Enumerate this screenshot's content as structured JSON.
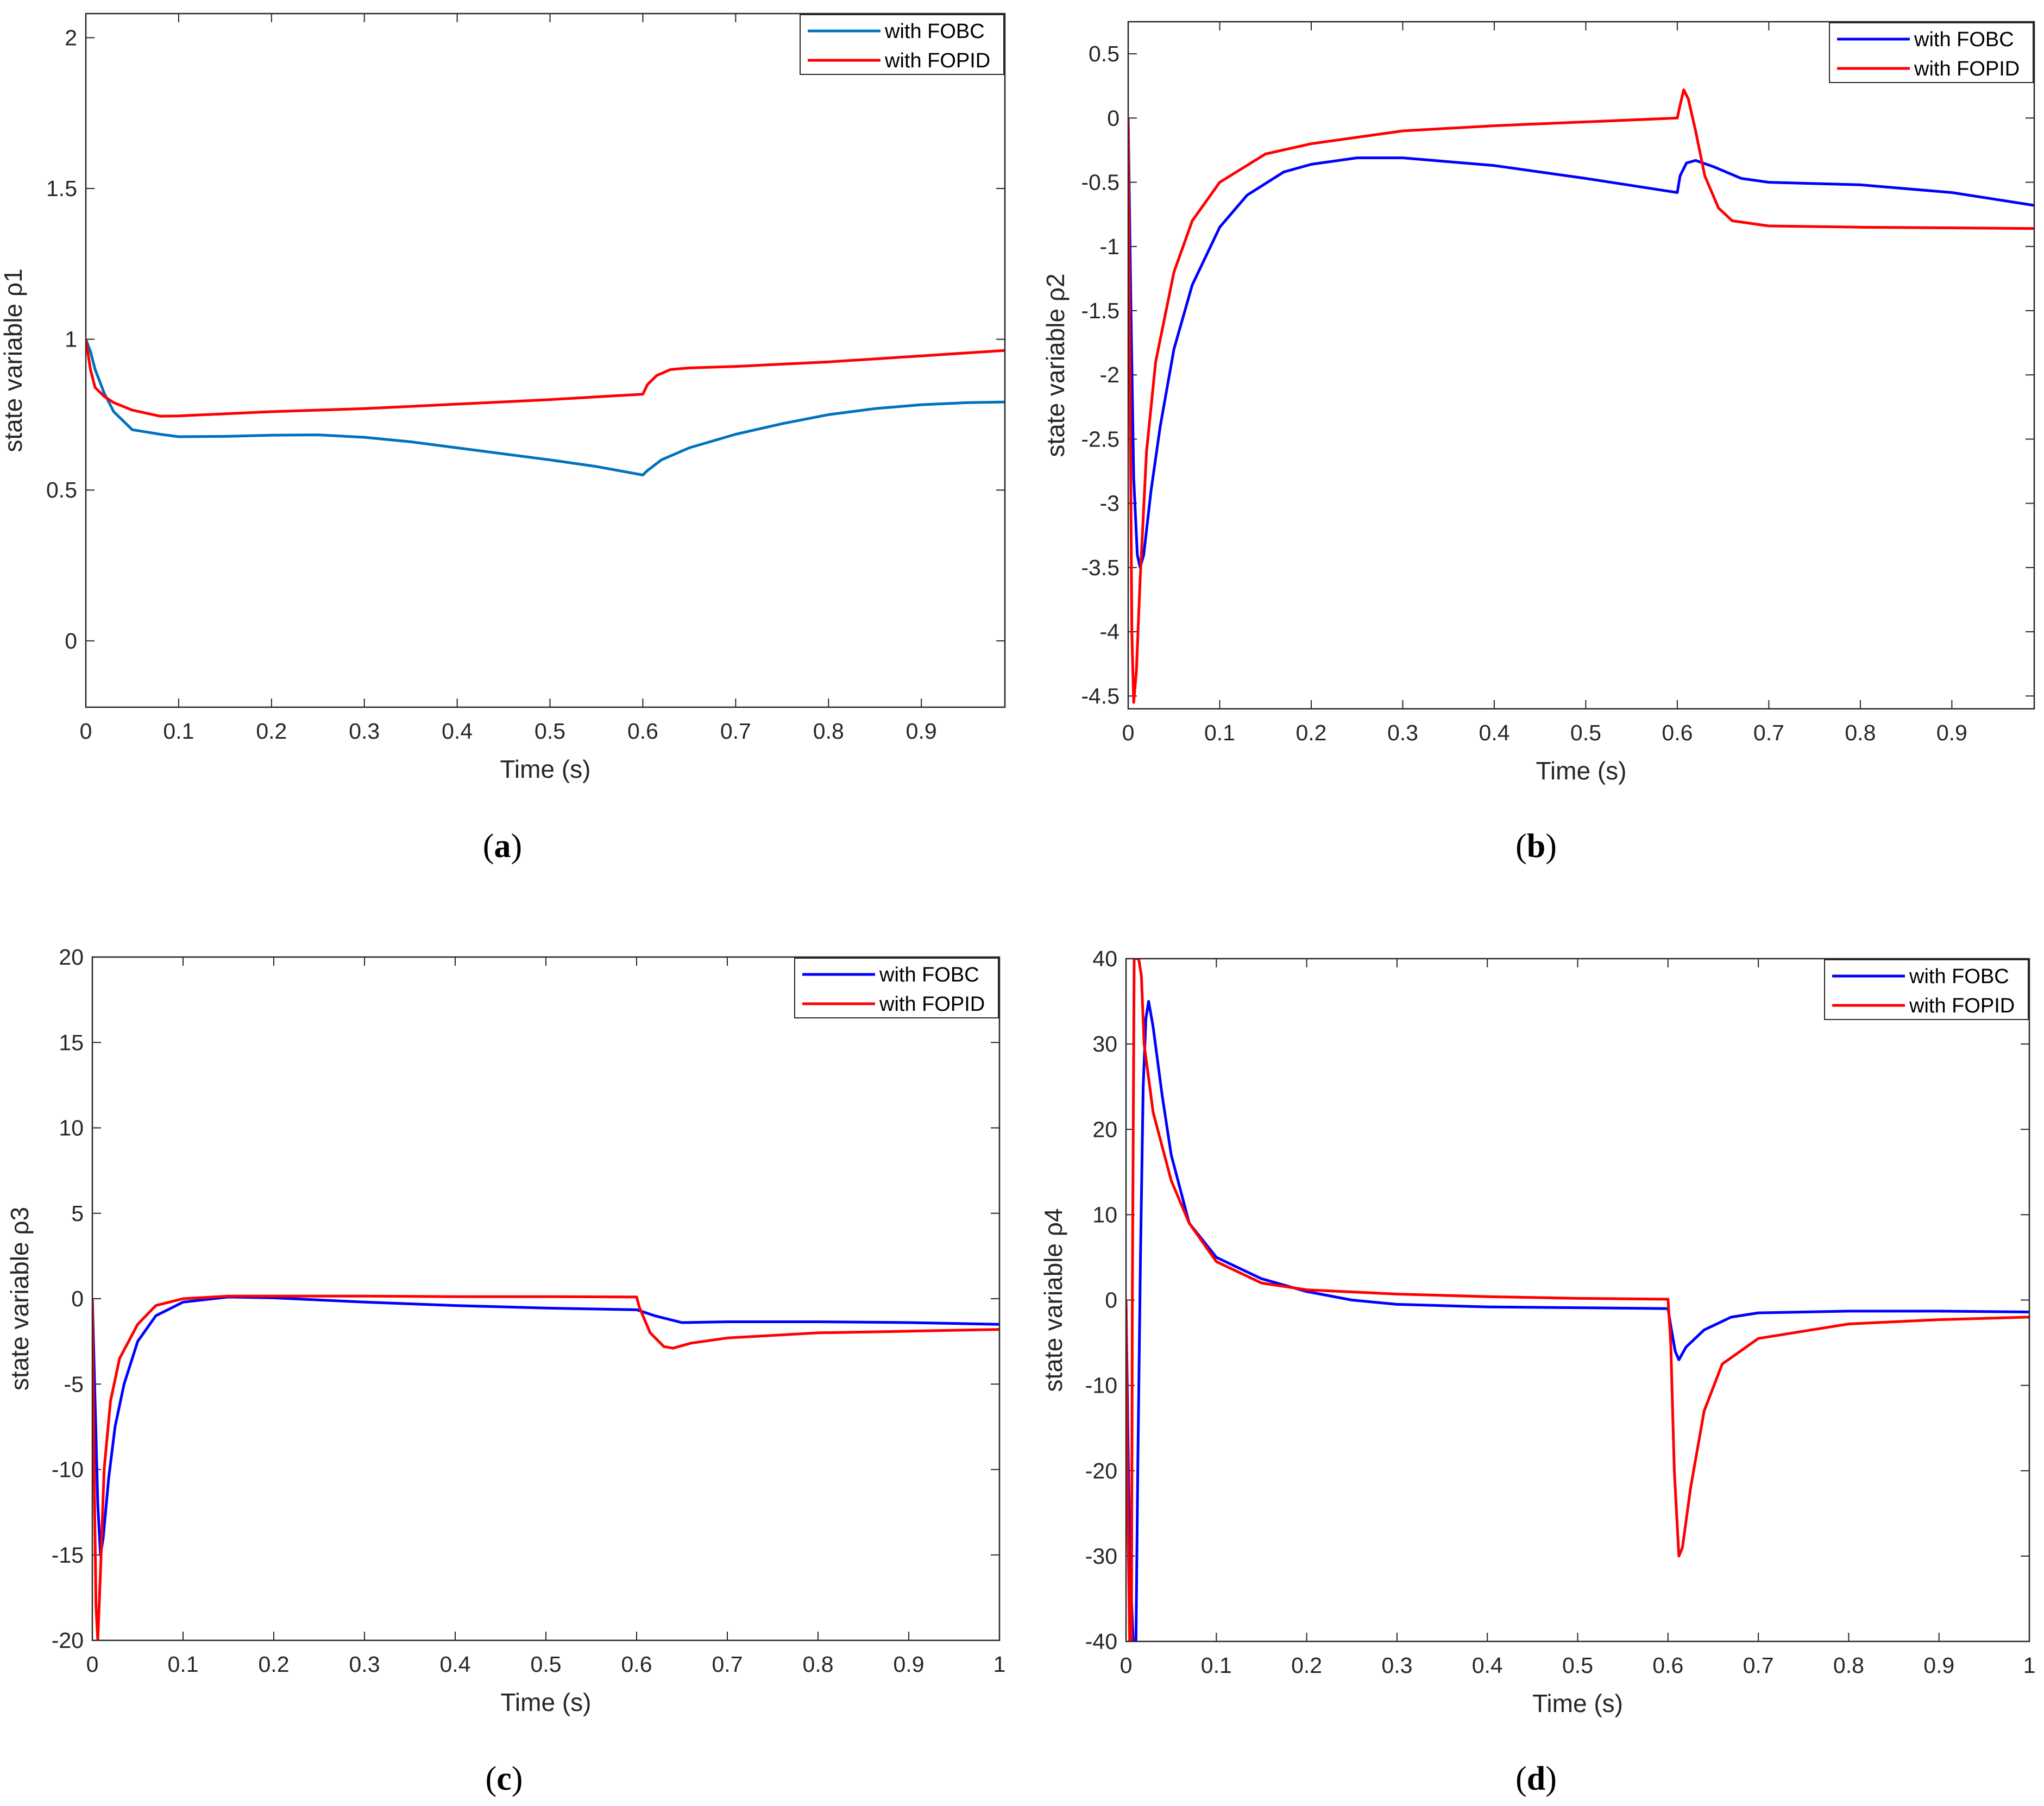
{
  "chart_data": [
    {
      "type": "line",
      "caption_letter": "a",
      "xlabel": "Time (s)",
      "ylabel": "state variable ρ1",
      "xlim": [
        0,
        0.99
      ],
      "ylim": [
        -0.22,
        2.08
      ],
      "xticks": [
        0,
        0.1,
        0.2,
        0.3,
        0.4,
        0.5,
        0.6,
        0.7,
        0.8,
        0.9
      ],
      "xtick_labels": [
        "0",
        "0.1",
        "0.2",
        "0.3",
        "0.4",
        "0.5",
        "0.6",
        "0.7",
        "0.8",
        "0.9"
      ],
      "yticks": [
        0,
        0.5,
        1,
        1.5,
        2
      ],
      "ytick_labels": [
        "0",
        "0.5",
        "1",
        "1.5",
        "2"
      ],
      "legend_position": "top-right",
      "series": [
        {
          "name": "with FOBC",
          "color": "#0072BD",
          "points": [
            [
              0,
              1
            ],
            [
              0.005,
              0.96
            ],
            [
              0.01,
              0.9
            ],
            [
              0.02,
              0.82
            ],
            [
              0.03,
              0.76
            ],
            [
              0.05,
              0.7
            ],
            [
              0.08,
              0.685
            ],
            [
              0.1,
              0.677
            ],
            [
              0.15,
              0.678
            ],
            [
              0.2,
              0.682
            ],
            [
              0.25,
              0.683
            ],
            [
              0.3,
              0.675
            ],
            [
              0.35,
              0.66
            ],
            [
              0.4,
              0.64
            ],
            [
              0.45,
              0.62
            ],
            [
              0.5,
              0.6
            ],
            [
              0.55,
              0.578
            ],
            [
              0.6,
              0.55
            ],
            [
              0.605,
              0.565
            ],
            [
              0.62,
              0.6
            ],
            [
              0.65,
              0.64
            ],
            [
              0.7,
              0.685
            ],
            [
              0.75,
              0.72
            ],
            [
              0.8,
              0.75
            ],
            [
              0.85,
              0.77
            ],
            [
              0.9,
              0.783
            ],
            [
              0.95,
              0.79
            ],
            [
              0.99,
              0.792
            ]
          ]
        },
        {
          "name": "with FOPID",
          "color": "#FF0000",
          "points": [
            [
              0,
              1
            ],
            [
              0.005,
              0.9
            ],
            [
              0.01,
              0.84
            ],
            [
              0.02,
              0.81
            ],
            [
              0.03,
              0.79
            ],
            [
              0.05,
              0.765
            ],
            [
              0.08,
              0.745
            ],
            [
              0.1,
              0.746
            ],
            [
              0.2,
              0.76
            ],
            [
              0.3,
              0.77
            ],
            [
              0.4,
              0.785
            ],
            [
              0.5,
              0.8
            ],
            [
              0.6,
              0.818
            ],
            [
              0.605,
              0.85
            ],
            [
              0.615,
              0.88
            ],
            [
              0.63,
              0.9
            ],
            [
              0.65,
              0.905
            ],
            [
              0.7,
              0.91
            ],
            [
              0.8,
              0.925
            ],
            [
              0.9,
              0.945
            ],
            [
              0.99,
              0.963
            ]
          ]
        }
      ]
    },
    {
      "type": "line",
      "caption_letter": "b",
      "xlabel": "Time (s)",
      "ylabel": "state variable ρ2",
      "xlim": [
        0,
        0.99
      ],
      "ylim": [
        -4.6,
        0.75
      ],
      "xticks": [
        0,
        0.1,
        0.2,
        0.3,
        0.4,
        0.5,
        0.6,
        0.7,
        0.8,
        0.9
      ],
      "xtick_labels": [
        "0",
        "0.1",
        "0.2",
        "0.3",
        "0.4",
        "0.5",
        "0.6",
        "0.7",
        "0.8",
        "0.9"
      ],
      "yticks": [
        -4.5,
        -4,
        -3.5,
        -3,
        -2.5,
        -2,
        -1.5,
        -1,
        -0.5,
        0,
        0.5
      ],
      "ytick_labels": [
        "-4.5",
        "-4",
        "-3.5",
        "-3",
        "-2.5",
        "-2",
        "-1.5",
        "-1",
        "-0.5",
        "0",
        "0.5"
      ],
      "legend_position": "top-right",
      "series": [
        {
          "name": "with FOBC",
          "color": "#0000FF",
          "points": [
            [
              0,
              0
            ],
            [
              0.003,
              -1.5
            ],
            [
              0.006,
              -2.8
            ],
            [
              0.01,
              -3.4
            ],
            [
              0.013,
              -3.5
            ],
            [
              0.017,
              -3.4
            ],
            [
              0.025,
              -2.9
            ],
            [
              0.035,
              -2.4
            ],
            [
              0.05,
              -1.8
            ],
            [
              0.07,
              -1.3
            ],
            [
              0.1,
              -0.85
            ],
            [
              0.13,
              -0.6
            ],
            [
              0.17,
              -0.42
            ],
            [
              0.2,
              -0.36
            ],
            [
              0.25,
              -0.31
            ],
            [
              0.3,
              -0.31
            ],
            [
              0.4,
              -0.37
            ],
            [
              0.5,
              -0.47
            ],
            [
              0.6,
              -0.58
            ],
            [
              0.603,
              -0.45
            ],
            [
              0.61,
              -0.35
            ],
            [
              0.62,
              -0.33
            ],
            [
              0.64,
              -0.38
            ],
            [
              0.67,
              -0.47
            ],
            [
              0.7,
              -0.5
            ],
            [
              0.8,
              -0.52
            ],
            [
              0.9,
              -0.58
            ],
            [
              0.99,
              -0.68
            ]
          ]
        },
        {
          "name": "with FOPID",
          "color": "#FF0000",
          "points": [
            [
              0,
              0
            ],
            [
              0.002,
              -2
            ],
            [
              0.004,
              -4
            ],
            [
              0.006,
              -4.55
            ],
            [
              0.009,
              -4.3
            ],
            [
              0.013,
              -3.6
            ],
            [
              0.02,
              -2.6
            ],
            [
              0.03,
              -1.9
            ],
            [
              0.05,
              -1.2
            ],
            [
              0.07,
              -0.8
            ],
            [
              0.1,
              -0.5
            ],
            [
              0.15,
              -0.28
            ],
            [
              0.2,
              -0.2
            ],
            [
              0.3,
              -0.1
            ],
            [
              0.4,
              -0.06
            ],
            [
              0.5,
              -0.03
            ],
            [
              0.6,
              0
            ],
            [
              0.603,
              0.1
            ],
            [
              0.607,
              0.22
            ],
            [
              0.612,
              0.15
            ],
            [
              0.62,
              -0.1
            ],
            [
              0.63,
              -0.45
            ],
            [
              0.645,
              -0.7
            ],
            [
              0.66,
              -0.8
            ],
            [
              0.7,
              -0.84
            ],
            [
              0.8,
              -0.85
            ],
            [
              0.9,
              -0.855
            ],
            [
              0.99,
              -0.86
            ]
          ]
        }
      ]
    },
    {
      "type": "line",
      "caption_letter": "c",
      "xlabel": "Time (s)",
      "ylabel": "state variable ρ3",
      "xlim": [
        0,
        1
      ],
      "ylim": [
        -20,
        20
      ],
      "xticks": [
        0,
        0.1,
        0.2,
        0.3,
        0.4,
        0.5,
        0.6,
        0.7,
        0.8,
        0.9,
        1
      ],
      "xtick_labels": [
        "0",
        "0.1",
        "0.2",
        "0.3",
        "0.4",
        "0.5",
        "0.6",
        "0.7",
        "0.8",
        "0.9",
        "1"
      ],
      "yticks": [
        -20,
        -15,
        -10,
        -5,
        0,
        5,
        10,
        15,
        20
      ],
      "ytick_labels": [
        "-20",
        "-15",
        "-10",
        "-5",
        "0",
        "5",
        "10",
        "15",
        "20"
      ],
      "legend_position": "top-right",
      "series": [
        {
          "name": "with FOBC",
          "color": "#0000FF",
          "points": [
            [
              0,
              0
            ],
            [
              0.003,
              -6
            ],
            [
              0.006,
              -12
            ],
            [
              0.009,
              -15
            ],
            [
              0.012,
              -14
            ],
            [
              0.018,
              -10.5
            ],
            [
              0.025,
              -7.5
            ],
            [
              0.035,
              -5
            ],
            [
              0.05,
              -2.5
            ],
            [
              0.07,
              -1
            ],
            [
              0.1,
              -0.2
            ],
            [
              0.15,
              0.1
            ],
            [
              0.2,
              0.05
            ],
            [
              0.3,
              -0.2
            ],
            [
              0.4,
              -0.4
            ],
            [
              0.5,
              -0.55
            ],
            [
              0.6,
              -0.65
            ],
            [
              0.603,
              -0.7
            ],
            [
              0.62,
              -1
            ],
            [
              0.65,
              -1.4
            ],
            [
              0.7,
              -1.35
            ],
            [
              0.8,
              -1.35
            ],
            [
              0.9,
              -1.4
            ],
            [
              1,
              -1.5
            ]
          ]
        },
        {
          "name": "with FOPID",
          "color": "#FF0000",
          "points": [
            [
              0,
              0
            ],
            [
              0.002,
              -10
            ],
            [
              0.004,
              -18
            ],
            [
              0.006,
              -20
            ],
            [
              0.009,
              -16
            ],
            [
              0.013,
              -10
            ],
            [
              0.02,
              -6
            ],
            [
              0.03,
              -3.5
            ],
            [
              0.05,
              -1.5
            ],
            [
              0.07,
              -0.4
            ],
            [
              0.1,
              0
            ],
            [
              0.15,
              0.15
            ],
            [
              0.2,
              0.15
            ],
            [
              0.3,
              0.15
            ],
            [
              0.4,
              0.12
            ],
            [
              0.5,
              0.12
            ],
            [
              0.6,
              0.1
            ],
            [
              0.603,
              -0.5
            ],
            [
              0.615,
              -2
            ],
            [
              0.63,
              -2.8
            ],
            [
              0.64,
              -2.9
            ],
            [
              0.66,
              -2.6
            ],
            [
              0.7,
              -2.3
            ],
            [
              0.8,
              -2
            ],
            [
              0.9,
              -1.9
            ],
            [
              1,
              -1.8
            ]
          ]
        }
      ]
    },
    {
      "type": "line",
      "caption_letter": "d",
      "xlabel": "Time (s)",
      "ylabel": "state variable ρ4",
      "xlim": [
        0,
        1
      ],
      "ylim": [
        -40,
        40
      ],
      "xticks": [
        0,
        0.1,
        0.2,
        0.3,
        0.4,
        0.5,
        0.6,
        0.7,
        0.8,
        0.9,
        1
      ],
      "xtick_labels": [
        "0",
        "0.1",
        "0.2",
        "0.3",
        "0.4",
        "0.5",
        "0.6",
        "0.7",
        "0.8",
        "0.9",
        "1"
      ],
      "yticks": [
        -40,
        -30,
        -20,
        -10,
        0,
        10,
        20,
        30,
        40
      ],
      "ytick_labels": [
        "-40",
        "-30",
        "-20",
        "-10",
        "0",
        "10",
        "20",
        "30",
        "40"
      ],
      "legend_position": "top-right",
      "series": [
        {
          "name": "with FOBC",
          "color": "#0000FF",
          "points": [
            [
              0,
              0
            ],
            [
              0.004,
              -30
            ],
            [
              0.008,
              -40
            ],
            [
              0.011,
              -40
            ],
            [
              0.013,
              -20
            ],
            [
              0.016,
              5
            ],
            [
              0.019,
              25
            ],
            [
              0.022,
              33
            ],
            [
              0.025,
              35
            ],
            [
              0.03,
              32
            ],
            [
              0.04,
              24
            ],
            [
              0.05,
              17
            ],
            [
              0.07,
              9
            ],
            [
              0.1,
              5
            ],
            [
              0.15,
              2.5
            ],
            [
              0.2,
              1
            ],
            [
              0.25,
              0
            ],
            [
              0.3,
              -0.5
            ],
            [
              0.4,
              -0.8
            ],
            [
              0.5,
              -0.9
            ],
            [
              0.6,
              -1
            ],
            [
              0.603,
              -3
            ],
            [
              0.608,
              -6
            ],
            [
              0.612,
              -7
            ],
            [
              0.62,
              -5.5
            ],
            [
              0.64,
              -3.5
            ],
            [
              0.67,
              -2
            ],
            [
              0.7,
              -1.5
            ],
            [
              0.8,
              -1.3
            ],
            [
              0.9,
              -1.3
            ],
            [
              1,
              -1.4
            ]
          ]
        },
        {
          "name": "with FOPID",
          "color": "#FF0000",
          "points": [
            [
              0,
              0
            ],
            [
              0.002,
              -25
            ],
            [
              0.004,
              -40
            ],
            [
              0.006,
              -40
            ],
            [
              0.007,
              0
            ],
            [
              0.009,
              40
            ],
            [
              0.014,
              40
            ],
            [
              0.017,
              38
            ],
            [
              0.02,
              30
            ],
            [
              0.03,
              22
            ],
            [
              0.05,
              14
            ],
            [
              0.07,
              9
            ],
            [
              0.1,
              4.5
            ],
            [
              0.15,
              2
            ],
            [
              0.2,
              1.2
            ],
            [
              0.3,
              0.7
            ],
            [
              0.4,
              0.4
            ],
            [
              0.5,
              0.2
            ],
            [
              0.6,
              0.1
            ],
            [
              0.603,
              -5
            ],
            [
              0.607,
              -20
            ],
            [
              0.612,
              -30
            ],
            [
              0.616,
              -29
            ],
            [
              0.625,
              -22
            ],
            [
              0.64,
              -13
            ],
            [
              0.66,
              -7.5
            ],
            [
              0.7,
              -4.5
            ],
            [
              0.8,
              -2.8
            ],
            [
              0.9,
              -2.3
            ],
            [
              1,
              -2
            ]
          ]
        }
      ]
    }
  ]
}
